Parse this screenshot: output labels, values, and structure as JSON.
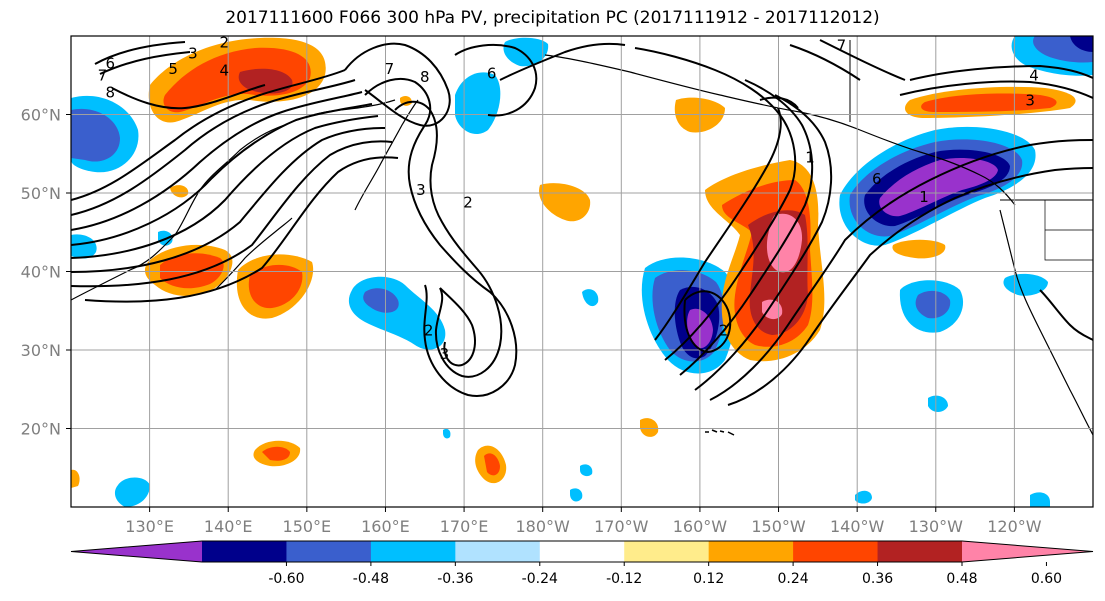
{
  "title": "2017111600 F066 300 hPa PV, precipitation PC (2017111912 - 2017112012)",
  "chart_data": {
    "type": "map",
    "projection": "cylindrical",
    "lon_range": [
      120,
      250
    ],
    "lat_range": [
      10,
      70
    ],
    "grid": true,
    "lat_ticks": [
      {
        "value": 60,
        "label": "60°N"
      },
      {
        "value": 50,
        "label": "50°N"
      },
      {
        "value": 40,
        "label": "40°N"
      },
      {
        "value": 30,
        "label": "30°N"
      },
      {
        "value": 20,
        "label": "20°N"
      }
    ],
    "lon_ticks": [
      {
        "value": 130,
        "label": "130°E"
      },
      {
        "value": 140,
        "label": "140°E"
      },
      {
        "value": 150,
        "label": "150°E"
      },
      {
        "value": 160,
        "label": "160°E"
      },
      {
        "value": 170,
        "label": "170°E"
      },
      {
        "value": 180,
        "label": "180°W"
      },
      {
        "value": 190,
        "label": "170°W"
      },
      {
        "value": 200,
        "label": "160°W"
      },
      {
        "value": 210,
        "label": "150°W"
      },
      {
        "value": 220,
        "label": "140°W"
      },
      {
        "value": 230,
        "label": "130°W"
      },
      {
        "value": 240,
        "label": "120°W"
      }
    ],
    "colorbar": {
      "extend": "both",
      "colors": [
        "#9932cc",
        "#00008b",
        "#3a5fcd",
        "#00bfff",
        "#b0e2ff",
        "#ffffff",
        "#ffec8b",
        "#ffa500",
        "#ff4500",
        "#b22222",
        "#ff83a8"
      ],
      "tick_labels": [
        "-0.60",
        "-0.48",
        "-0.36",
        "-0.24",
        "-0.12",
        "0.12",
        "0.24",
        "0.36",
        "0.48",
        "0.60"
      ]
    },
    "pv_contour_labels": [
      {
        "text": "6",
        "lon": 125.0,
        "lat": 66.5
      },
      {
        "text": "7",
        "lon": 124.0,
        "lat": 65.0
      },
      {
        "text": "5",
        "lon": 133.0,
        "lat": 65.8
      },
      {
        "text": "3",
        "lon": 135.5,
        "lat": 67.8
      },
      {
        "text": "2",
        "lon": 139.5,
        "lat": 69.2
      },
      {
        "text": "4",
        "lon": 139.5,
        "lat": 65.6
      },
      {
        "text": "8",
        "lon": 125.0,
        "lat": 62.8
      },
      {
        "text": "7",
        "lon": 160.5,
        "lat": 65.8
      },
      {
        "text": "8",
        "lon": 165.0,
        "lat": 64.8
      },
      {
        "text": "6",
        "lon": 173.5,
        "lat": 65.2
      },
      {
        "text": "3",
        "lon": 164.5,
        "lat": 50.4
      },
      {
        "text": "2",
        "lon": 170.5,
        "lat": 48.8
      },
      {
        "text": "2",
        "lon": 165.5,
        "lat": 32.5
      },
      {
        "text": "3",
        "lon": 167.5,
        "lat": 29.5
      },
      {
        "text": "1",
        "lon": 214.0,
        "lat": 54.5
      },
      {
        "text": "6",
        "lon": 222.5,
        "lat": 51.8
      },
      {
        "text": "1",
        "lon": 228.5,
        "lat": 49.5
      },
      {
        "text": "4",
        "lon": 242.5,
        "lat": 65.0
      },
      {
        "text": "3",
        "lon": 242.0,
        "lat": 61.8
      },
      {
        "text": "7",
        "lon": 218.0,
        "lat": 68.8
      },
      {
        "text": "2",
        "lon": 203.0,
        "lat": 32.5
      }
    ]
  }
}
